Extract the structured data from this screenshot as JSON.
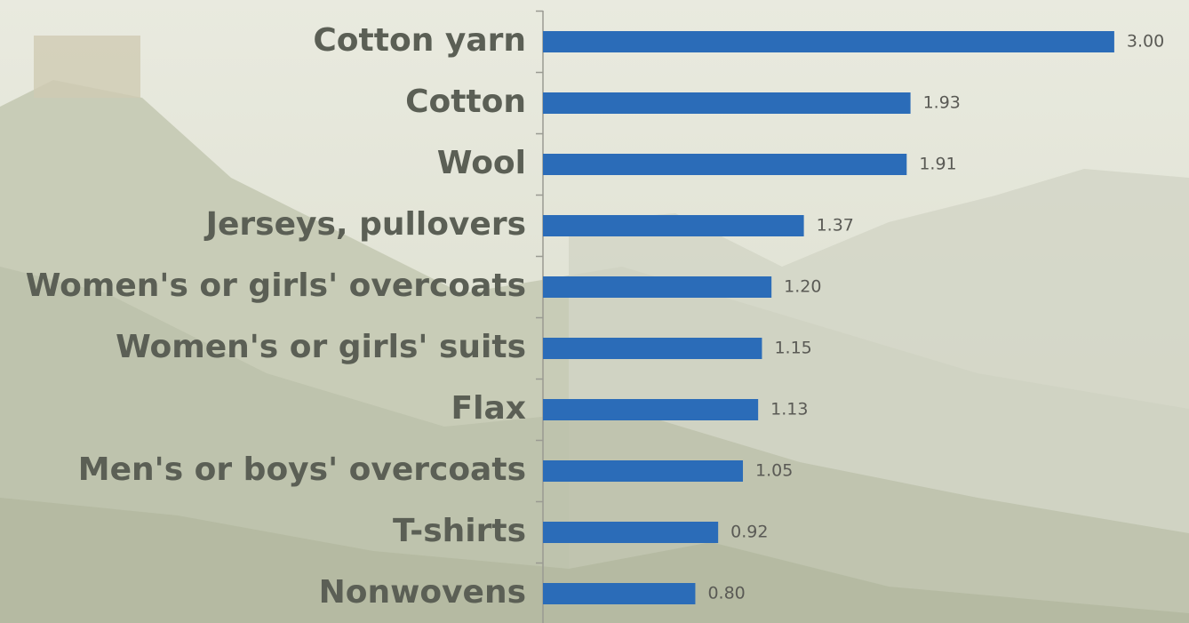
{
  "chart_data": {
    "type": "bar",
    "orientation": "horizontal",
    "categories": [
      "Cotton yarn",
      "Cotton",
      "Wool",
      "Jerseys, pullovers",
      "Women's or girls' overcoats",
      "Women's or girls' suits",
      "Flax",
      "Men's or boys' overcoats",
      "T-shirts",
      "Nonwovens"
    ],
    "values": [
      3,
      1.93,
      1.91,
      1.37,
      1.2,
      1.15,
      1.13,
      1.05,
      0.92,
      0.8
    ],
    "value_labels": [
      "3.00",
      "1.93",
      "1.91",
      "1.37",
      "1.20",
      "1.15",
      "1.13",
      "1.05",
      "0.92",
      "0.80"
    ],
    "color": "#2b6cb8"
  }
}
